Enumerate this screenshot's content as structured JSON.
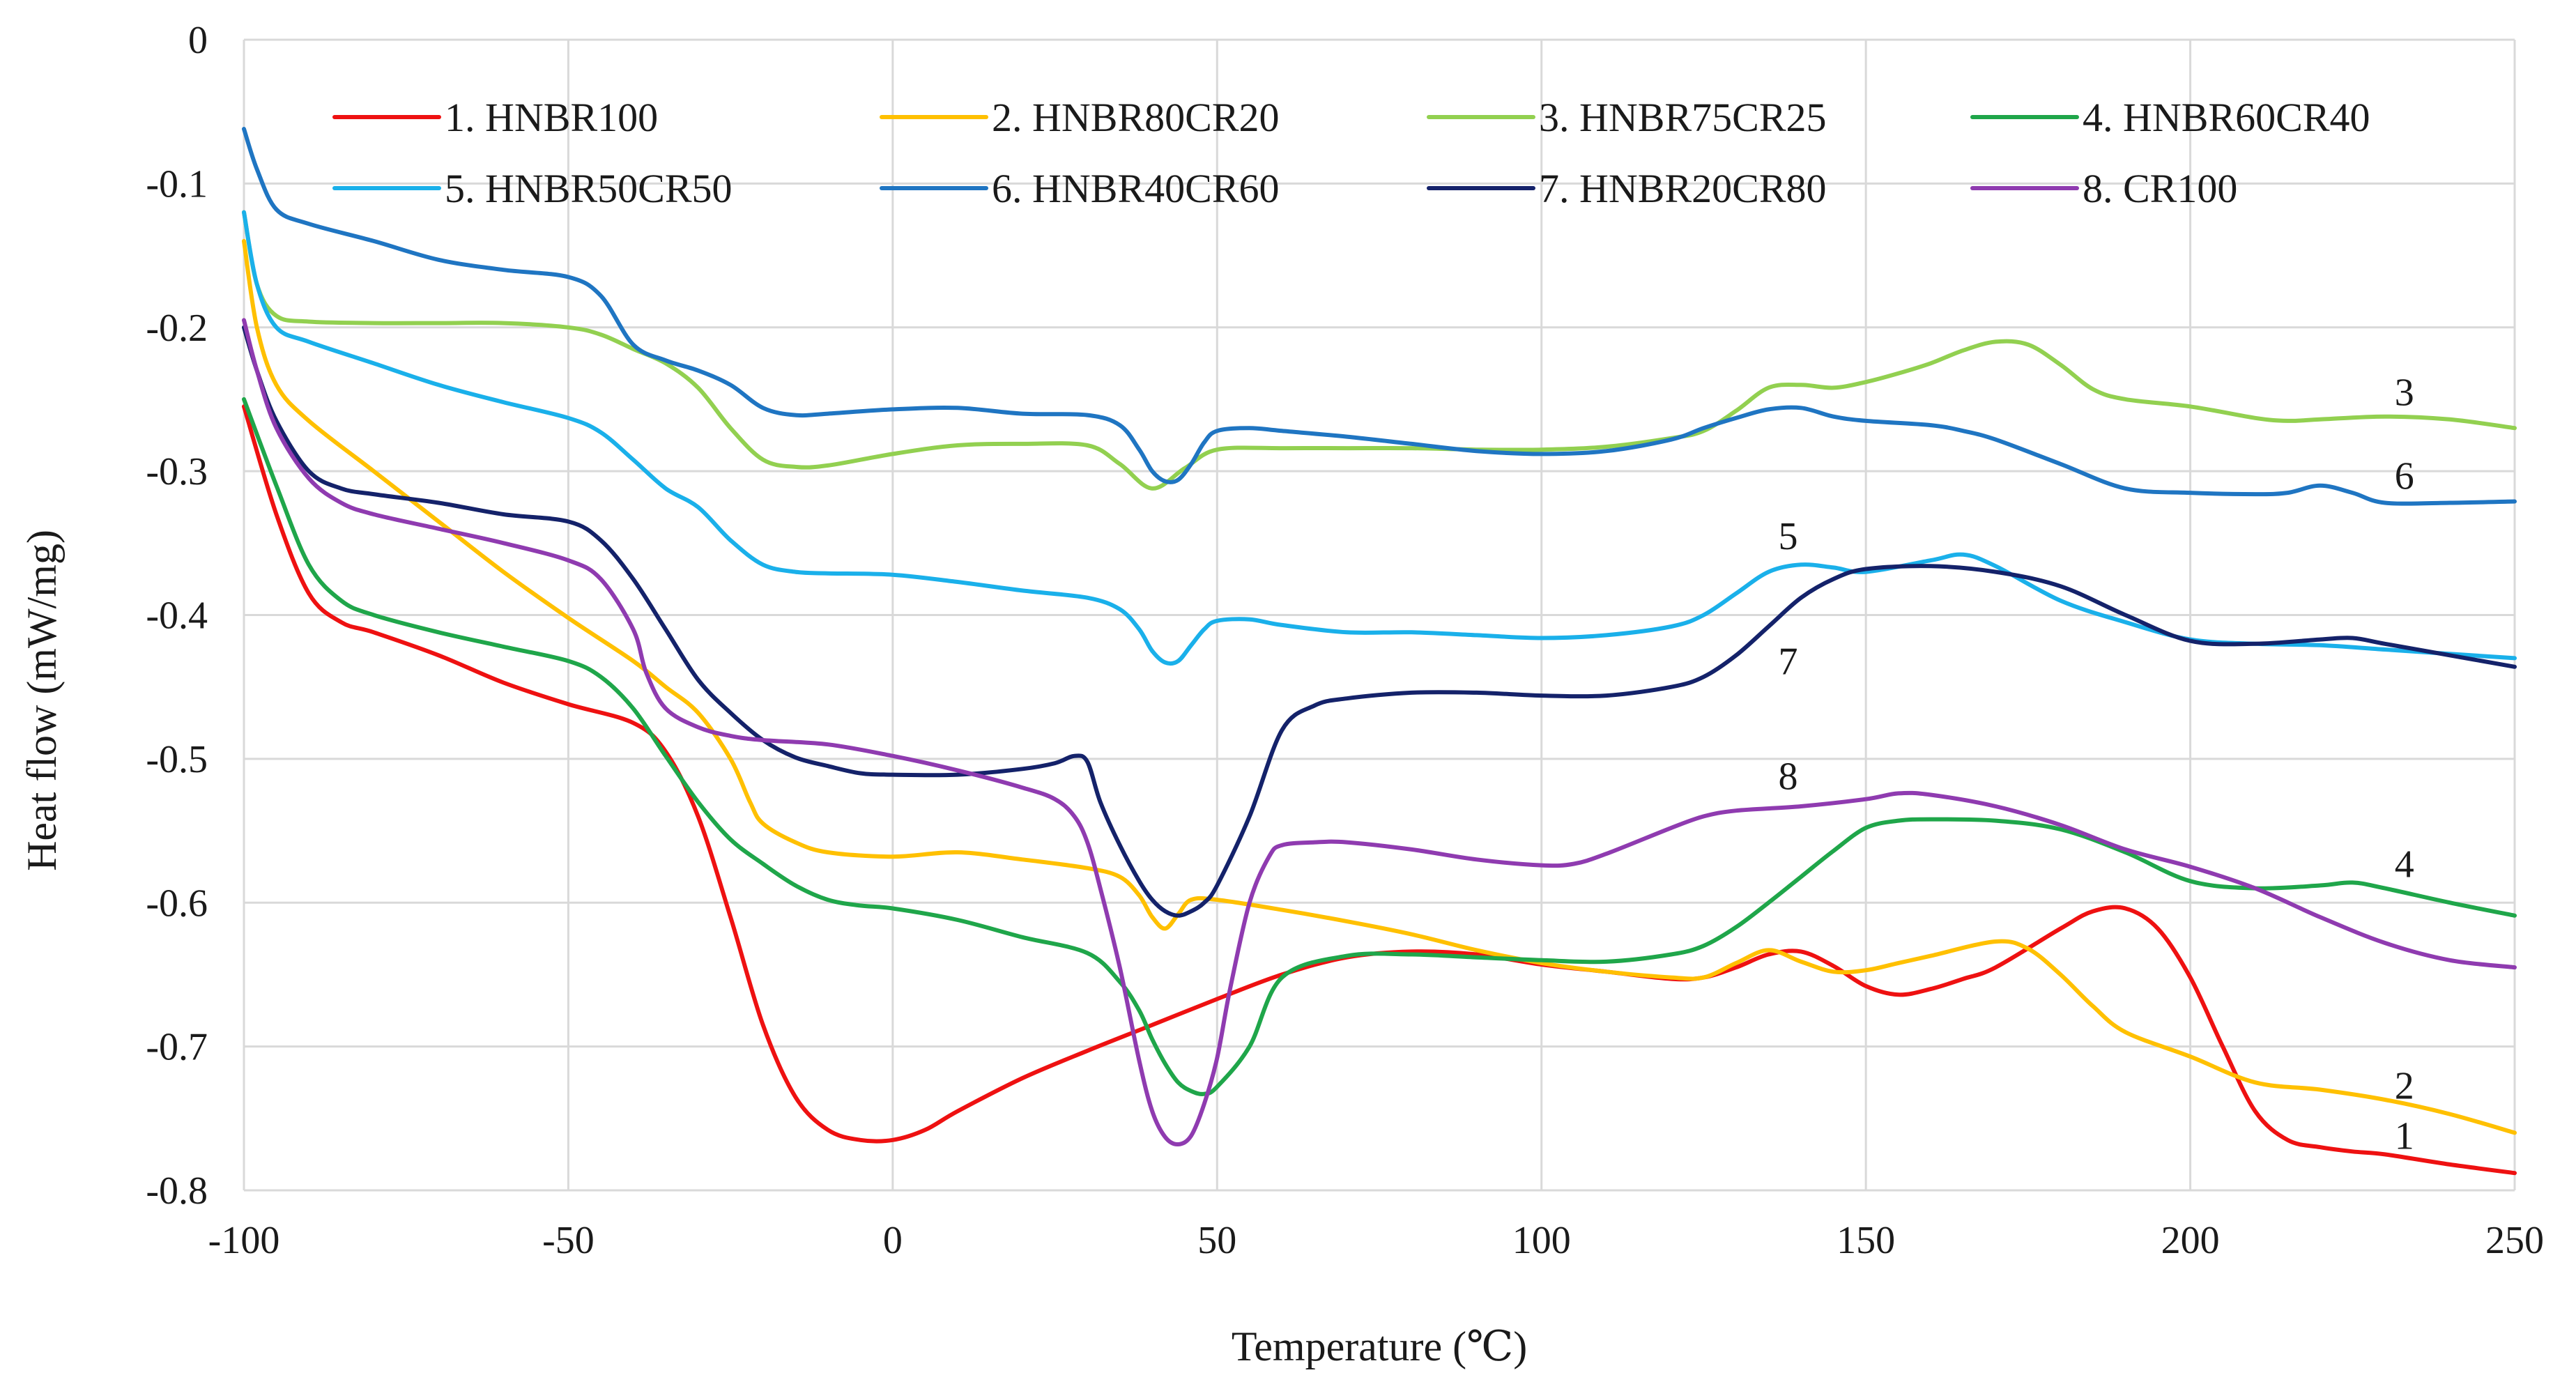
{
  "chart_data": {
    "type": "line",
    "title": "",
    "xlabel": "Temperature (℃)",
    "ylabel": "Heat flow (mW/mg)",
    "xlim": [
      -100,
      250
    ],
    "ylim": [
      -0.8,
      0
    ],
    "xticks": [
      -100,
      -50,
      0,
      50,
      100,
      150,
      200,
      250
    ],
    "yticks": [
      0,
      -0.1,
      -0.2,
      -0.3,
      -0.4,
      -0.5,
      -0.6,
      -0.7,
      -0.8
    ],
    "xtick_labels": [
      "-100",
      "-50",
      "0",
      "50",
      "100",
      "150",
      "200",
      "250"
    ],
    "ytick_labels": [
      "0",
      "-0.1",
      "-0.2",
      "-0.3",
      "-0.4",
      "-0.5",
      "-0.6",
      "-0.7",
      "-0.8"
    ],
    "grid": true,
    "legend_position": "top",
    "series": [
      {
        "name": "1. HNBR100",
        "color": "#ee1111",
        "label": "1",
        "label_at": [
          233,
          -0.762
        ],
        "x": [
          -100,
          -95,
          -90,
          -85,
          -80,
          -70,
          -60,
          -50,
          -40,
          -35,
          -30,
          -25,
          -20,
          -15,
          -10,
          -5,
          0,
          5,
          10,
          20,
          30,
          40,
          50,
          60,
          70,
          80,
          90,
          100,
          110,
          120,
          125,
          130,
          135,
          140,
          145,
          150,
          155,
          160,
          165,
          170,
          180,
          185,
          190,
          195,
          200,
          205,
          210,
          215,
          220,
          225,
          230,
          240,
          250
        ],
        "values": [
          -0.255,
          -0.33,
          -0.385,
          -0.405,
          -0.412,
          -0.428,
          -0.447,
          -0.462,
          -0.475,
          -0.495,
          -0.54,
          -0.61,
          -0.685,
          -0.735,
          -0.758,
          -0.765,
          -0.765,
          -0.758,
          -0.745,
          -0.722,
          -0.703,
          -0.685,
          -0.667,
          -0.65,
          -0.638,
          -0.634,
          -0.636,
          -0.643,
          -0.648,
          -0.653,
          -0.652,
          -0.645,
          -0.636,
          -0.634,
          -0.644,
          -0.658,
          -0.664,
          -0.66,
          -0.653,
          -0.645,
          -0.618,
          -0.606,
          -0.604,
          -0.618,
          -0.652,
          -0.7,
          -0.745,
          -0.765,
          -0.77,
          -0.773,
          -0.775,
          -0.782,
          -0.788
        ]
      },
      {
        "name": "2. HNBR80CR20",
        "color": "#ffc000",
        "label": "2",
        "label_at": [
          233,
          -0.727
        ],
        "x": [
          -100,
          -98,
          -95,
          -90,
          -80,
          -70,
          -60,
          -50,
          -40,
          -35,
          -30,
          -25,
          -22,
          -20,
          -15,
          -10,
          0,
          10,
          20,
          30,
          35,
          38,
          40,
          42,
          44,
          46,
          50,
          60,
          70,
          80,
          90,
          100,
          110,
          120,
          125,
          130,
          135,
          140,
          145,
          150,
          155,
          160,
          170,
          175,
          180,
          185,
          190,
          200,
          210,
          220,
          230,
          240,
          250
        ],
        "values": [
          -0.14,
          -0.2,
          -0.24,
          -0.265,
          -0.3,
          -0.335,
          -0.37,
          -0.402,
          -0.432,
          -0.45,
          -0.468,
          -0.5,
          -0.53,
          -0.545,
          -0.558,
          -0.565,
          -0.568,
          -0.565,
          -0.57,
          -0.576,
          -0.582,
          -0.595,
          -0.61,
          -0.618,
          -0.608,
          -0.598,
          -0.598,
          -0.605,
          -0.613,
          -0.622,
          -0.633,
          -0.642,
          -0.648,
          -0.652,
          -0.652,
          -0.642,
          -0.633,
          -0.641,
          -0.648,
          -0.647,
          -0.642,
          -0.637,
          -0.627,
          -0.632,
          -0.65,
          -0.672,
          -0.69,
          -0.707,
          -0.725,
          -0.73,
          -0.737,
          -0.747,
          -0.76
        ]
      },
      {
        "name": "3. HNBR75CR25",
        "color": "#92d050",
        "label": "3",
        "label_at": [
          233,
          -0.245
        ],
        "x": [
          -100,
          -98,
          -95,
          -90,
          -80,
          -70,
          -60,
          -50,
          -45,
          -40,
          -35,
          -30,
          -25,
          -20,
          -15,
          -10,
          0,
          10,
          20,
          30,
          35,
          40,
          45,
          50,
          60,
          70,
          80,
          90,
          100,
          110,
          120,
          125,
          130,
          135,
          140,
          145,
          150,
          155,
          160,
          165,
          170,
          175,
          180,
          185,
          190,
          200,
          210,
          215,
          220,
          230,
          240,
          250
        ],
        "values": [
          -0.12,
          -0.17,
          -0.192,
          -0.196,
          -0.197,
          -0.197,
          -0.197,
          -0.2,
          -0.205,
          -0.215,
          -0.225,
          -0.242,
          -0.27,
          -0.292,
          -0.297,
          -0.296,
          -0.288,
          -0.282,
          -0.281,
          -0.282,
          -0.295,
          -0.312,
          -0.298,
          -0.285,
          -0.284,
          -0.284,
          -0.284,
          -0.285,
          -0.285,
          -0.283,
          -0.277,
          -0.272,
          -0.258,
          -0.242,
          -0.24,
          -0.242,
          -0.238,
          -0.232,
          -0.225,
          -0.216,
          -0.21,
          -0.212,
          -0.226,
          -0.243,
          -0.25,
          -0.255,
          -0.263,
          -0.265,
          -0.264,
          -0.262,
          -0.264,
          -0.27
        ]
      },
      {
        "name": "4. HNBR60CR40",
        "color": "#1fa64a",
        "label": "4",
        "label_at": [
          233,
          -0.573
        ],
        "x": [
          -100,
          -95,
          -90,
          -85,
          -80,
          -70,
          -60,
          -50,
          -45,
          -40,
          -35,
          -30,
          -25,
          -20,
          -15,
          -10,
          -5,
          0,
          10,
          20,
          30,
          35,
          38,
          40,
          42,
          44,
          46,
          48,
          50,
          55,
          60,
          70,
          80,
          90,
          100,
          110,
          120,
          125,
          130,
          135,
          140,
          145,
          150,
          155,
          160,
          170,
          180,
          190,
          200,
          210,
          220,
          225,
          230,
          240,
          250
        ],
        "values": [
          -0.25,
          -0.31,
          -0.365,
          -0.39,
          -0.4,
          -0.412,
          -0.422,
          -0.432,
          -0.443,
          -0.465,
          -0.498,
          -0.53,
          -0.556,
          -0.573,
          -0.588,
          -0.598,
          -0.602,
          -0.604,
          -0.612,
          -0.624,
          -0.635,
          -0.655,
          -0.675,
          -0.695,
          -0.712,
          -0.725,
          -0.731,
          -0.733,
          -0.728,
          -0.7,
          -0.652,
          -0.637,
          -0.636,
          -0.638,
          -0.64,
          -0.641,
          -0.636,
          -0.63,
          -0.617,
          -0.6,
          -0.582,
          -0.564,
          -0.548,
          -0.543,
          -0.542,
          -0.543,
          -0.549,
          -0.565,
          -0.585,
          -0.59,
          -0.588,
          -0.586,
          -0.59,
          -0.6,
          -0.609
        ]
      },
      {
        "name": "5. HNBR50CR50",
        "color": "#1ab0ea",
        "label": "5",
        "label_at": [
          138,
          -0.345
        ],
        "x": [
          -100,
          -98,
          -95,
          -90,
          -80,
          -70,
          -60,
          -50,
          -45,
          -40,
          -35,
          -30,
          -25,
          -20,
          -15,
          -10,
          0,
          10,
          20,
          30,
          35,
          38,
          40,
          42,
          44,
          46,
          48,
          50,
          55,
          60,
          70,
          80,
          90,
          100,
          110,
          120,
          125,
          130,
          135,
          140,
          145,
          150,
          160,
          165,
          170,
          180,
          190,
          200,
          210,
          220,
          230,
          240,
          250
        ],
        "values": [
          -0.12,
          -0.17,
          -0.2,
          -0.21,
          -0.225,
          -0.24,
          -0.252,
          -0.263,
          -0.273,
          -0.292,
          -0.312,
          -0.325,
          -0.348,
          -0.365,
          -0.37,
          -0.371,
          -0.372,
          -0.377,
          -0.383,
          -0.388,
          -0.396,
          -0.41,
          -0.425,
          -0.433,
          -0.432,
          -0.421,
          -0.41,
          -0.404,
          -0.403,
          -0.407,
          -0.412,
          -0.412,
          -0.414,
          -0.416,
          -0.414,
          -0.408,
          -0.4,
          -0.385,
          -0.37,
          -0.365,
          -0.367,
          -0.37,
          -0.362,
          -0.358,
          -0.366,
          -0.39,
          -0.405,
          -0.417,
          -0.42,
          -0.421,
          -0.424,
          -0.427,
          -0.43
        ]
      },
      {
        "name": "6. HNBR40CR60",
        "color": "#1f75c2",
        "label": "6",
        "label_at": [
          233,
          -0.303
        ],
        "x": [
          -100,
          -98,
          -95,
          -90,
          -80,
          -70,
          -60,
          -50,
          -45,
          -40,
          -35,
          -30,
          -25,
          -20,
          -15,
          -10,
          0,
          10,
          20,
          30,
          35,
          38,
          40,
          42,
          44,
          46,
          48,
          50,
          55,
          60,
          70,
          80,
          90,
          100,
          110,
          120,
          125,
          130,
          135,
          140,
          145,
          150,
          160,
          165,
          170,
          180,
          190,
          200,
          210,
          215,
          220,
          225,
          230,
          240,
          250
        ],
        "values": [
          -0.062,
          -0.09,
          -0.118,
          -0.128,
          -0.14,
          -0.153,
          -0.16,
          -0.165,
          -0.178,
          -0.212,
          -0.223,
          -0.23,
          -0.24,
          -0.256,
          -0.261,
          -0.26,
          -0.257,
          -0.256,
          -0.26,
          -0.261,
          -0.268,
          -0.285,
          -0.3,
          -0.307,
          -0.306,
          -0.295,
          -0.28,
          -0.272,
          -0.27,
          -0.272,
          -0.276,
          -0.281,
          -0.286,
          -0.288,
          -0.286,
          -0.278,
          -0.27,
          -0.263,
          -0.257,
          -0.256,
          -0.262,
          -0.265,
          -0.268,
          -0.272,
          -0.278,
          -0.295,
          -0.312,
          -0.315,
          -0.316,
          -0.315,
          -0.31,
          -0.315,
          -0.322,
          -0.322,
          -0.321
        ]
      },
      {
        "name": "7. HNBR20CR80",
        "color": "#14226a",
        "label": "7",
        "label_at": [
          138,
          -0.432
        ],
        "x": [
          -100,
          -98,
          -95,
          -90,
          -85,
          -80,
          -70,
          -60,
          -50,
          -45,
          -40,
          -35,
          -30,
          -25,
          -20,
          -15,
          -10,
          -5,
          0,
          10,
          20,
          25,
          28,
          30,
          32,
          35,
          38,
          40,
          42,
          44,
          46,
          48,
          50,
          55,
          60,
          65,
          70,
          80,
          90,
          100,
          110,
          120,
          125,
          130,
          135,
          140,
          145,
          150,
          160,
          170,
          180,
          190,
          200,
          210,
          220,
          225,
          230,
          240,
          250
        ],
        "values": [
          -0.2,
          -0.23,
          -0.265,
          -0.3,
          -0.312,
          -0.316,
          -0.322,
          -0.33,
          -0.335,
          -0.348,
          -0.375,
          -0.41,
          -0.445,
          -0.468,
          -0.487,
          -0.499,
          -0.505,
          -0.51,
          -0.511,
          -0.511,
          -0.507,
          -0.503,
          -0.498,
          -0.502,
          -0.53,
          -0.56,
          -0.585,
          -0.598,
          -0.606,
          -0.609,
          -0.606,
          -0.6,
          -0.588,
          -0.54,
          -0.48,
          -0.463,
          -0.458,
          -0.454,
          -0.454,
          -0.456,
          -0.456,
          -0.45,
          -0.443,
          -0.428,
          -0.408,
          -0.388,
          -0.375,
          -0.368,
          -0.366,
          -0.37,
          -0.38,
          -0.4,
          -0.418,
          -0.42,
          -0.417,
          -0.416,
          -0.42,
          -0.428,
          -0.436
        ]
      },
      {
        "name": "8. CR100",
        "color": "#8f3bb0",
        "label": "8",
        "label_at": [
          138,
          -0.512
        ],
        "x": [
          -100,
          -98,
          -95,
          -90,
          -85,
          -80,
          -70,
          -60,
          -50,
          -45,
          -40,
          -38,
          -35,
          -30,
          -25,
          -20,
          -10,
          0,
          10,
          20,
          25,
          28,
          30,
          32,
          35,
          38,
          40,
          42,
          44,
          46,
          48,
          50,
          52,
          55,
          58,
          60,
          65,
          70,
          80,
          90,
          100,
          105,
          110,
          120,
          125,
          130,
          140,
          150,
          155,
          160,
          170,
          180,
          190,
          200,
          210,
          220,
          230,
          240,
          250
        ],
        "values": [
          -0.195,
          -0.23,
          -0.27,
          -0.305,
          -0.322,
          -0.33,
          -0.34,
          -0.35,
          -0.362,
          -0.375,
          -0.41,
          -0.44,
          -0.465,
          -0.478,
          -0.484,
          -0.487,
          -0.49,
          -0.498,
          -0.508,
          -0.52,
          -0.528,
          -0.54,
          -0.558,
          -0.59,
          -0.645,
          -0.71,
          -0.745,
          -0.763,
          -0.768,
          -0.762,
          -0.74,
          -0.708,
          -0.66,
          -0.6,
          -0.568,
          -0.56,
          -0.558,
          -0.558,
          -0.563,
          -0.57,
          -0.574,
          -0.573,
          -0.566,
          -0.548,
          -0.54,
          -0.536,
          -0.533,
          -0.528,
          -0.524,
          -0.525,
          -0.533,
          -0.546,
          -0.563,
          -0.575,
          -0.59,
          -0.61,
          -0.628,
          -0.64,
          -0.645
        ]
      }
    ]
  }
}
